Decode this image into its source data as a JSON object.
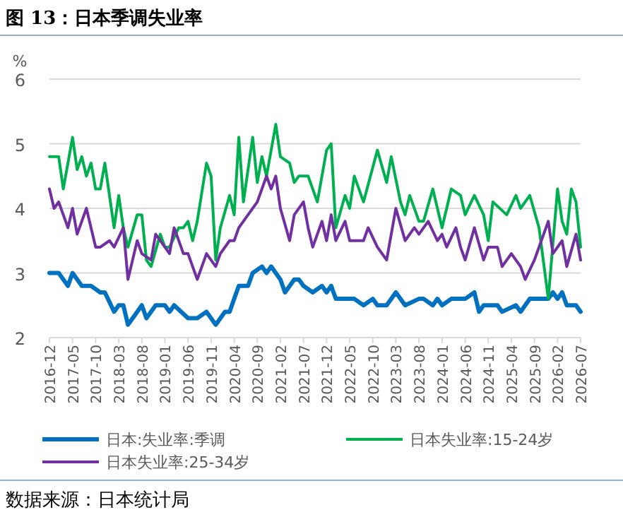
{
  "chart_data": {
    "type": "line",
    "title": "图 13：日本季调失业率",
    "ylabel": "%",
    "annotations": [
      "数据来源：日本统计局"
    ],
    "xlim": [
      "2016-12",
      "2026-07"
    ],
    "xticks": [
      "2016-12",
      "2017-05",
      "2017-10",
      "2018-03",
      "2018-08",
      "2019-01",
      "2019-06",
      "2019-11",
      "2020-04",
      "2020-09",
      "2021-02",
      "2021-07",
      "2021-12",
      "2022-05",
      "2022-10",
      "2023-03",
      "2023-08",
      "2024-01",
      "2024-06",
      "2024-11",
      "2025-04",
      "2025-09",
      "2026-02",
      "2026-07"
    ],
    "ylim": [
      2,
      6
    ],
    "yticks": [
      2,
      3,
      4,
      5,
      6
    ],
    "grid": "y",
    "legend": "bottom",
    "marker": "none",
    "line_style": "solid",
    "series": [
      {
        "name": "日本:失业率:季调",
        "color": "#0070c0",
        "x": [
          "2016-12",
          "2017-02",
          "2017-04",
          "2017-05",
          "2017-07",
          "2017-09",
          "2017-11",
          "2017-12",
          "2018-02",
          "2018-03",
          "2018-04",
          "2018-05",
          "2018-07",
          "2018-08",
          "2018-09",
          "2018-11",
          "2019-01",
          "2019-02",
          "2019-03",
          "2019-06",
          "2019-08",
          "2019-10",
          "2019-12",
          "2020-02",
          "2020-03",
          "2020-04",
          "2020-05",
          "2020-07",
          "2020-08",
          "2020-10",
          "2020-11",
          "2020-12",
          "2021-02",
          "2021-03",
          "2021-05",
          "2021-06",
          "2021-07",
          "2021-09",
          "2021-11",
          "2021-12",
          "2022-01",
          "2022-02",
          "2022-04",
          "2022-06",
          "2022-08",
          "2022-10",
          "2022-11",
          "2023-01",
          "2023-03",
          "2023-05",
          "2023-08",
          "2023-09",
          "2023-11",
          "2023-12",
          "2024-01",
          "2024-03",
          "2024-06",
          "2024-08",
          "2024-09",
          "2024-10",
          "2025-01",
          "2025-02",
          "2025-05",
          "2025-06",
          "2025-08",
          "2025-12",
          "2026-01",
          "2026-02",
          "2026-03",
          "2026-04",
          "2026-06",
          "2026-07"
        ],
        "values": [
          3.0,
          3.0,
          2.8,
          3.0,
          2.8,
          2.8,
          2.7,
          2.7,
          2.4,
          2.5,
          2.5,
          2.2,
          2.4,
          2.5,
          2.3,
          2.5,
          2.5,
          2.4,
          2.5,
          2.3,
          2.3,
          2.4,
          2.2,
          2.4,
          2.4,
          2.6,
          2.8,
          2.8,
          3.0,
          3.1,
          3.0,
          3.1,
          2.9,
          2.7,
          2.9,
          2.9,
          2.8,
          2.7,
          2.8,
          2.7,
          2.8,
          2.6,
          2.6,
          2.6,
          2.5,
          2.6,
          2.5,
          2.5,
          2.7,
          2.5,
          2.6,
          2.6,
          2.5,
          2.6,
          2.5,
          2.6,
          2.6,
          2.7,
          2.4,
          2.5,
          2.5,
          2.4,
          2.5,
          2.4,
          2.6,
          2.6,
          2.7,
          2.6,
          2.7,
          2.5,
          2.5,
          2.4
        ]
      },
      {
        "name": "日本失业率:15-24岁",
        "color": "#00b050",
        "x": [
          "2016-12",
          "2017-02",
          "2017-03",
          "2017-05",
          "2017-06",
          "2017-07",
          "2017-08",
          "2017-09",
          "2017-10",
          "2017-11",
          "2017-12",
          "2018-02",
          "2018-03",
          "2018-04",
          "2018-05",
          "2018-07",
          "2018-08",
          "2018-09",
          "2018-10",
          "2018-12",
          "2019-01",
          "2019-02",
          "2019-04",
          "2019-05",
          "2019-06",
          "2019-07",
          "2019-08",
          "2019-10",
          "2019-11",
          "2019-12",
          "2020-01",
          "2020-03",
          "2020-04",
          "2020-05",
          "2020-06",
          "2020-08",
          "2020-09",
          "2020-10",
          "2020-11",
          "2021-01",
          "2021-02",
          "2021-04",
          "2021-05",
          "2021-06",
          "2021-07",
          "2021-08",
          "2021-10",
          "2021-12",
          "2022-01",
          "2022-02",
          "2022-04",
          "2022-05",
          "2022-06",
          "2022-08",
          "2022-11",
          "2023-01",
          "2023-02",
          "2023-04",
          "2023-05",
          "2023-06",
          "2023-08",
          "2023-09",
          "2023-11",
          "2024-01",
          "2024-03",
          "2024-05",
          "2024-06",
          "2024-08",
          "2024-10",
          "2024-11",
          "2024-12",
          "2025-03",
          "2025-05",
          "2025-06",
          "2025-08",
          "2025-10",
          "2025-12",
          "2026-02",
          "2026-03",
          "2026-04",
          "2026-05",
          "2026-06",
          "2026-07"
        ],
        "values": [
          4.8,
          4.8,
          4.3,
          5.1,
          4.6,
          4.8,
          4.5,
          4.7,
          4.3,
          4.3,
          4.7,
          3.7,
          4.2,
          3.7,
          3.4,
          3.9,
          3.9,
          3.2,
          3.1,
          3.6,
          3.4,
          3.4,
          3.7,
          3.7,
          3.8,
          3.5,
          3.8,
          4.7,
          4.5,
          3.2,
          3.7,
          4.2,
          3.9,
          5.1,
          4.1,
          5.1,
          4.4,
          4.8,
          4.5,
          5.3,
          4.8,
          4.7,
          4.4,
          4.5,
          4.5,
          4.5,
          4.1,
          4.9,
          5.0,
          3.7,
          4.2,
          4.0,
          4.5,
          4.1,
          4.9,
          4.4,
          4.8,
          4.1,
          3.9,
          4.2,
          3.8,
          3.8,
          4.3,
          3.7,
          4.3,
          4.2,
          3.9,
          4.2,
          3.9,
          3.5,
          4.1,
          3.9,
          4.2,
          4.0,
          4.2,
          3.7,
          2.6,
          4.3,
          3.8,
          3.6,
          4.3,
          4.1,
          3.4
        ]
      },
      {
        "name": "日本失业率:25-34岁",
        "color": "#7030a0",
        "x": [
          "2016-12",
          "2017-01",
          "2017-02",
          "2017-04",
          "2017-05",
          "2017-06",
          "2017-08",
          "2017-10",
          "2017-11",
          "2018-01",
          "2018-02",
          "2018-04",
          "2018-05",
          "2018-07",
          "2018-08",
          "2018-10",
          "2018-11",
          "2019-01",
          "2019-02",
          "2019-03",
          "2019-05",
          "2019-06",
          "2019-08",
          "2019-10",
          "2019-12",
          "2020-01",
          "2020-03",
          "2020-04",
          "2020-05",
          "2020-07",
          "2020-09",
          "2020-11",
          "2020-12",
          "2021-01",
          "2021-02",
          "2021-04",
          "2021-05",
          "2021-07",
          "2021-08",
          "2021-09",
          "2021-11",
          "2021-12",
          "2022-01",
          "2022-02",
          "2022-04",
          "2022-05",
          "2022-08",
          "2022-09",
          "2022-11",
          "2023-01",
          "2023-03",
          "2023-05",
          "2023-07",
          "2023-08",
          "2023-10",
          "2023-12",
          "2024-01",
          "2024-02",
          "2024-04",
          "2024-05",
          "2024-06",
          "2024-08",
          "2024-10",
          "2024-11",
          "2025-01",
          "2025-02",
          "2025-04",
          "2025-06",
          "2025-07",
          "2025-09",
          "2025-11",
          "2025-12",
          "2026-01",
          "2026-03",
          "2026-04",
          "2026-06",
          "2026-07"
        ],
        "values": [
          4.3,
          4.0,
          4.1,
          3.7,
          4.0,
          3.6,
          4.0,
          3.4,
          3.4,
          3.5,
          3.4,
          3.7,
          2.9,
          3.5,
          3.3,
          3.2,
          3.6,
          3.4,
          3.3,
          3.7,
          3.3,
          3.3,
          2.9,
          3.3,
          3.1,
          3.3,
          3.5,
          3.5,
          3.7,
          3.9,
          4.1,
          4.5,
          4.3,
          4.5,
          4.0,
          3.5,
          3.9,
          4.1,
          3.7,
          3.4,
          3.8,
          3.5,
          3.9,
          3.5,
          3.8,
          3.5,
          3.5,
          3.7,
          3.4,
          3.2,
          4.0,
          3.5,
          3.7,
          3.6,
          3.8,
          3.5,
          3.6,
          3.4,
          3.7,
          3.4,
          3.2,
          3.7,
          3.2,
          3.4,
          3.4,
          3.1,
          3.3,
          3.1,
          2.9,
          3.2,
          3.6,
          3.8,
          3.3,
          3.5,
          3.1,
          3.6,
          3.2
        ]
      }
    ]
  }
}
